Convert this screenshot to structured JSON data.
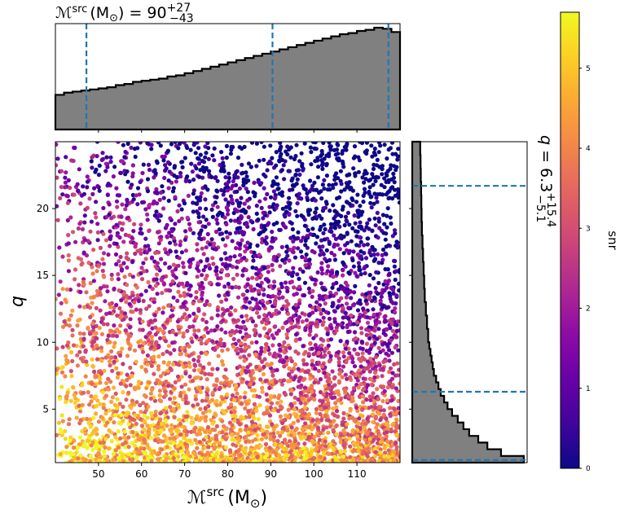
{
  "chart_data": [
    {
      "type": "scatter",
      "panel": "joint",
      "xlabel_symbol": "ℳ",
      "xlabel_sup": "src",
      "xlabel_unit": "(M",
      "xlabel_unit_sub": "⊙",
      "xlabel_close": ")",
      "ylabel": "q",
      "xlim": [
        40,
        120
      ],
      "ylim": [
        1,
        25
      ],
      "xticks": [
        50,
        60,
        70,
        80,
        90,
        100,
        110
      ],
      "yticks": [
        5,
        10,
        15,
        20
      ],
      "color_variable": "snr",
      "colormap": "plasma",
      "density_note": "samples densest at low q; snr highest (yellow) at low q and low chirp mass, lowest (dark blue) at high q and high chirp mass"
    },
    {
      "type": "histogram",
      "panel": "marginal-x",
      "title_symbol": "ℳ",
      "title_sup": "src",
      "title_unit": "(M",
      "title_unit_sub": "⊙",
      "title_close": ")",
      "title_eq": "=",
      "title_median": "90",
      "title_plus": "+27",
      "title_minus": "−43",
      "quantile_lines": [
        47.2,
        90.4,
        117.3
      ],
      "bin_edges": [
        40,
        42,
        44,
        46,
        48,
        50,
        52,
        54,
        56,
        58,
        60,
        62,
        64,
        66,
        68,
        70,
        72,
        74,
        76,
        78,
        80,
        82,
        84,
        86,
        88,
        90,
        92,
        94,
        96,
        98,
        100,
        102,
        104,
        106,
        108,
        110,
        112,
        114,
        116,
        118,
        120
      ],
      "counts": [
        0.32,
        0.34,
        0.35,
        0.36,
        0.37,
        0.38,
        0.39,
        0.41,
        0.42,
        0.44,
        0.45,
        0.46,
        0.47,
        0.49,
        0.5,
        0.52,
        0.54,
        0.56,
        0.58,
        0.6,
        0.62,
        0.64,
        0.66,
        0.68,
        0.7,
        0.72,
        0.74,
        0.76,
        0.78,
        0.8,
        0.82,
        0.84,
        0.86,
        0.88,
        0.89,
        0.91,
        0.92,
        0.94,
        0.93,
        0.9
      ]
    },
    {
      "type": "histogram",
      "panel": "marginal-y",
      "orientation": "horizontal",
      "title_symbol": "q",
      "title_eq": "=",
      "title_median": "6.3",
      "title_plus": "+15.4",
      "title_minus": "−5.1",
      "quantile_lines": [
        1.2,
        6.3,
        21.7
      ],
      "bin_edges": [
        1,
        1.5,
        2,
        2.5,
        3,
        3.5,
        4,
        4.5,
        5,
        5.5,
        6,
        6.5,
        7,
        7.5,
        8,
        8.5,
        9,
        9.5,
        10,
        11,
        12,
        13,
        14,
        15,
        16,
        17,
        18,
        19,
        20,
        21,
        22,
        23,
        24,
        25
      ],
      "counts": [
        0.98,
        0.78,
        0.66,
        0.58,
        0.5,
        0.45,
        0.4,
        0.35,
        0.31,
        0.28,
        0.25,
        0.23,
        0.21,
        0.19,
        0.18,
        0.17,
        0.16,
        0.15,
        0.14,
        0.13,
        0.12,
        0.11,
        0.105,
        0.1,
        0.095,
        0.09,
        0.085,
        0.082,
        0.08,
        0.078,
        0.075,
        0.073,
        0.07
      ]
    }
  ],
  "colorbar": {
    "label": "snr",
    "colormap": "plasma",
    "range": [
      0,
      5.7
    ],
    "ticks": [
      "0",
      "1",
      "2",
      "3",
      "4",
      "5"
    ]
  },
  "colors": {
    "hist_fill": "#808080",
    "hist_edge": "#000000",
    "quantile_line": "#1f77b4"
  }
}
